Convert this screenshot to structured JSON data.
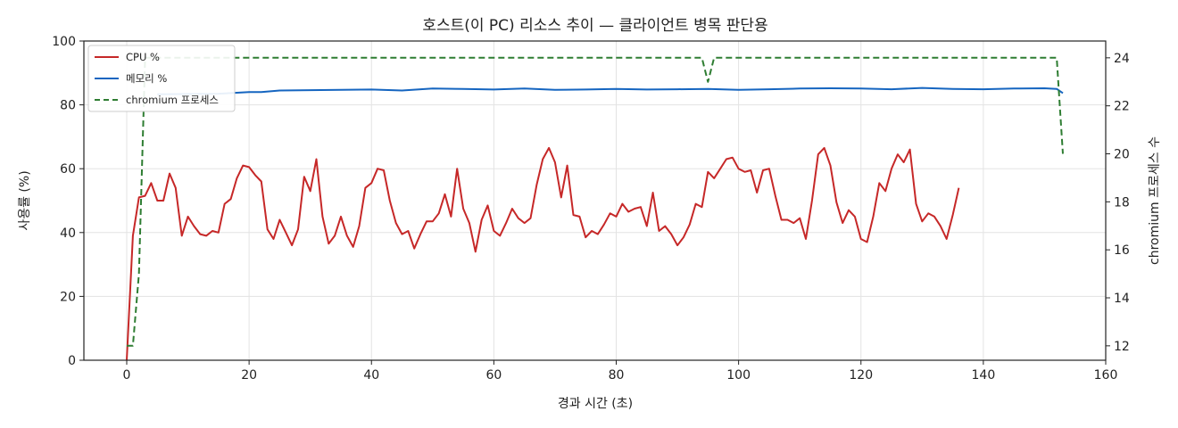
{
  "chart_data": {
    "type": "line",
    "title": "호스트(이 PC) 리소스 추이 — 클라이언트 병목 판단용",
    "xlabel": "경과 시간 (초)",
    "ylabel": "사용률 (%)",
    "y2label": "chromium 프로세스 수",
    "xlim": [
      -7,
      160
    ],
    "ylim": [
      0,
      100
    ],
    "y2lim": [
      11.4,
      24.7
    ],
    "x_ticks": [
      0,
      20,
      40,
      60,
      80,
      100,
      120,
      140,
      160
    ],
    "y_ticks": [
      0,
      20,
      40,
      60,
      80,
      100
    ],
    "y2_ticks": [
      12,
      14,
      16,
      18,
      20,
      22,
      24
    ],
    "grid": true,
    "legend_position": "top-left",
    "series": [
      {
        "name": "CPU %",
        "axis": "left",
        "color": "#c62828",
        "style": "solid",
        "points": [
          [
            0,
            0
          ],
          [
            1,
            39
          ],
          [
            2,
            51
          ],
          [
            3,
            51.5
          ],
          [
            4,
            55.5
          ],
          [
            5,
            50
          ],
          [
            6,
            50
          ],
          [
            7,
            58.5
          ],
          [
            8,
            54
          ],
          [
            9,
            39
          ],
          [
            10,
            45
          ],
          [
            11,
            42
          ],
          [
            12,
            39.5
          ],
          [
            13,
            39
          ],
          [
            14,
            40.5
          ],
          [
            15,
            40
          ],
          [
            16,
            49
          ],
          [
            17,
            50.5
          ],
          [
            18,
            57
          ],
          [
            19,
            61
          ],
          [
            20,
            60.5
          ],
          [
            21,
            58
          ],
          [
            22,
            56
          ],
          [
            23,
            41
          ],
          [
            24,
            38
          ],
          [
            25,
            44
          ],
          [
            26,
            40
          ],
          [
            27,
            36
          ],
          [
            28,
            41
          ],
          [
            29,
            57.5
          ],
          [
            30,
            53
          ],
          [
            31,
            63
          ],
          [
            32,
            45
          ],
          [
            33,
            36.5
          ],
          [
            34,
            39
          ],
          [
            35,
            45
          ],
          [
            36,
            39
          ],
          [
            37,
            35.5
          ],
          [
            38,
            42
          ],
          [
            39,
            54
          ],
          [
            40,
            55.5
          ],
          [
            41,
            60
          ],
          [
            42,
            59.5
          ],
          [
            43,
            50
          ],
          [
            44,
            43
          ],
          [
            45,
            39.5
          ],
          [
            46,
            40.5
          ],
          [
            47,
            35
          ],
          [
            48,
            39.5
          ],
          [
            49,
            43.5
          ],
          [
            50,
            43.5
          ],
          [
            51,
            46
          ],
          [
            52,
            52
          ],
          [
            53,
            45
          ],
          [
            54,
            60
          ],
          [
            55,
            47.5
          ],
          [
            56,
            43
          ],
          [
            57,
            34
          ],
          [
            58,
            44
          ],
          [
            59,
            48.5
          ],
          [
            60,
            40.5
          ],
          [
            61,
            39
          ],
          [
            62,
            43
          ],
          [
            63,
            47.5
          ],
          [
            64,
            44.5
          ],
          [
            65,
            43
          ],
          [
            66,
            44.5
          ],
          [
            67,
            55
          ],
          [
            68,
            63
          ],
          [
            69,
            66.5
          ],
          [
            70,
            62
          ],
          [
            71,
            51
          ],
          [
            72,
            61
          ],
          [
            73,
            45.5
          ],
          [
            74,
            45
          ],
          [
            75,
            38.5
          ],
          [
            76,
            40.5
          ],
          [
            77,
            39.5
          ],
          [
            78,
            42.5
          ],
          [
            79,
            46
          ],
          [
            80,
            45
          ],
          [
            81,
            49
          ],
          [
            82,
            46.5
          ],
          [
            83,
            47.5
          ],
          [
            84,
            48
          ],
          [
            85,
            42
          ],
          [
            86,
            52.5
          ],
          [
            87,
            40.5
          ],
          [
            88,
            42
          ],
          [
            89,
            39.5
          ],
          [
            90,
            36
          ],
          [
            91,
            38.5
          ],
          [
            92,
            42.5
          ],
          [
            93,
            49
          ],
          [
            94,
            48
          ],
          [
            95,
            59
          ],
          [
            96,
            57
          ],
          [
            97,
            60
          ],
          [
            98,
            63
          ],
          [
            99,
            63.5
          ],
          [
            100,
            60
          ],
          [
            101,
            59
          ],
          [
            102,
            59.5
          ],
          [
            103,
            52.5
          ],
          [
            104,
            59.5
          ],
          [
            105,
            60
          ],
          [
            106,
            51.5
          ],
          [
            107,
            44
          ],
          [
            108,
            44
          ],
          [
            109,
            43
          ],
          [
            110,
            44.5
          ],
          [
            111,
            38
          ],
          [
            112,
            50
          ],
          [
            113,
            64.5
          ],
          [
            114,
            66.5
          ],
          [
            115,
            61
          ],
          [
            116,
            49.5
          ],
          [
            117,
            43
          ],
          [
            118,
            47
          ],
          [
            119,
            45
          ],
          [
            120,
            38
          ],
          [
            121,
            37
          ],
          [
            122,
            45
          ],
          [
            123,
            55.5
          ],
          [
            124,
            53
          ],
          [
            125,
            60
          ],
          [
            126,
            64.5
          ],
          [
            127,
            62
          ],
          [
            128,
            66
          ],
          [
            129,
            49
          ],
          [
            130,
            43.5
          ],
          [
            131,
            46
          ],
          [
            132,
            45
          ],
          [
            133,
            42
          ],
          [
            134,
            38
          ],
          [
            135,
            45.5
          ],
          [
            136,
            54
          ]
        ]
      },
      {
        "name": "메모리 %",
        "axis": "left",
        "color": "#1565c0",
        "style": "solid",
        "points": [
          [
            5,
            83.3
          ],
          [
            10,
            83.4
          ],
          [
            15,
            83.5
          ],
          [
            20,
            84
          ],
          [
            22,
            84
          ],
          [
            25,
            84.5
          ],
          [
            30,
            84.6
          ],
          [
            35,
            84.7
          ],
          [
            40,
            84.8
          ],
          [
            45,
            84.5
          ],
          [
            50,
            85.1
          ],
          [
            55,
            85
          ],
          [
            60,
            84.8
          ],
          [
            65,
            85.1
          ],
          [
            70,
            84.7
          ],
          [
            75,
            84.8
          ],
          [
            80,
            85
          ],
          [
            85,
            84.8
          ],
          [
            90,
            84.9
          ],
          [
            95,
            85
          ],
          [
            100,
            84.7
          ],
          [
            105,
            84.9
          ],
          [
            110,
            85.1
          ],
          [
            115,
            85.2
          ],
          [
            120,
            85.1
          ],
          [
            125,
            84.9
          ],
          [
            130,
            85.3
          ],
          [
            135,
            85
          ],
          [
            140,
            84.9
          ],
          [
            145,
            85.1
          ],
          [
            150,
            85.2
          ],
          [
            152,
            85
          ],
          [
            153,
            83.7
          ]
        ]
      },
      {
        "name": "chromium 프로세스",
        "axis": "right",
        "color": "#2e7d32",
        "style": "dashed",
        "points": [
          [
            0,
            12
          ],
          [
            1,
            12
          ],
          [
            2,
            15
          ],
          [
            3,
            24
          ],
          [
            94,
            24
          ],
          [
            95,
            23
          ],
          [
            96,
            24
          ],
          [
            152,
            24
          ],
          [
            153,
            20
          ]
        ]
      }
    ]
  }
}
